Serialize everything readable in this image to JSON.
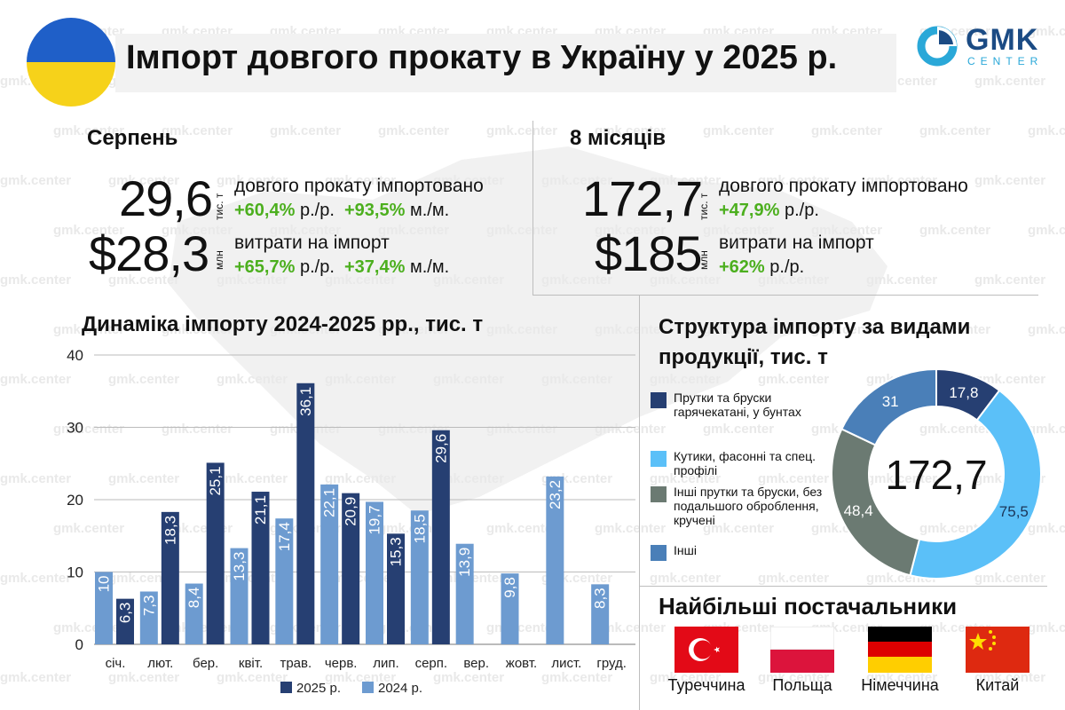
{
  "header": {
    "title": "Імпорт довгого прокату в Україну у 2025 р.",
    "logo_name": "GMK",
    "logo_sub": "CENTER",
    "watermark": "gmk.center"
  },
  "colors": {
    "dark_blue": "#263f72",
    "light_blue": "#6d9bd0",
    "sky_blue": "#5bc0f8",
    "gray_green": "#6b7a72",
    "steel_blue": "#4a7fb8",
    "green": "#4caf1e",
    "flag_blue": "#1f5fc8",
    "flag_yellow": "#f6d21a"
  },
  "august": {
    "title": "Серпень",
    "volume": "29,6",
    "volume_unit": "тис. т",
    "volume_desc": "довгого прокату імпортовано",
    "volume_yoy": "+60,4%",
    "yoy_label": "р./р.",
    "volume_mom": "+93,5%",
    "mom_label": "м./м.",
    "cost": "$28,3",
    "cost_unit": "млн",
    "cost_desc": "витрати на імпорт",
    "cost_yoy": "+65,7%",
    "cost_mom": "+37,4%"
  },
  "eight_months": {
    "title": "8 місяців",
    "volume": "172,7",
    "volume_unit": "тис. т",
    "volume_desc": "довгого прокату імпортовано",
    "volume_yoy": "+47,9%",
    "yoy_label": "р./р.",
    "cost": "$185",
    "cost_unit": "млн",
    "cost_desc": "витрати на імпорт",
    "cost_yoy": "+62%"
  },
  "chart_data": [
    {
      "type": "bar",
      "title": "Динаміка імпорту 2024-2025 рр., тис. т",
      "categories": [
        "січ.",
        "лют.",
        "бер.",
        "квіт.",
        "трав.",
        "черв.",
        "лип.",
        "серп.",
        "вер.",
        "жовт.",
        "лист.",
        "груд."
      ],
      "series": [
        {
          "name": "2024 р.",
          "color": "#6d9bd0",
          "values": [
            10,
            7.3,
            8.4,
            13.3,
            17.4,
            22.1,
            19.7,
            18.5,
            13.9,
            9.8,
            23.2,
            8.3
          ],
          "labels": [
            "10",
            "7,3",
            "8,4",
            "13,3",
            "17,4",
            "22,1",
            "19,7",
            "18,5",
            "13,9",
            "9,8",
            "23,2",
            "8,3"
          ]
        },
        {
          "name": "2025 р.",
          "color": "#263f72",
          "values": [
            6.3,
            18.3,
            25.1,
            21.1,
            36.1,
            20.9,
            15.3,
            29.6,
            null,
            null,
            null,
            null
          ],
          "labels": [
            "6,3",
            "18,3",
            "25,1",
            "21,1",
            "36,1",
            "20,9",
            "15,3",
            "29,6",
            "",
            "",
            "",
            ""
          ]
        }
      ],
      "ylim": [
        0,
        40
      ],
      "yticks": [
        0,
        10,
        20,
        30,
        40
      ],
      "grid": true,
      "legend": "bottom"
    },
    {
      "type": "pie",
      "title": "Структура імпорту за видами продукції, тис. т",
      "total": "172,7",
      "slices": [
        {
          "label": "Прутки та бруски гарячекатані, у бунтах",
          "value": 17.8,
          "value_label": "17,8",
          "color": "#263f72"
        },
        {
          "label": "Кутики, фасонні та спец. профілі",
          "value": 75.5,
          "value_label": "75,5",
          "color": "#5bc0f8"
        },
        {
          "label": "Інші прутки та бруски, без подальшого оброблення, кручені",
          "value": 48.4,
          "value_label": "48,4",
          "color": "#6b7a72"
        },
        {
          "label": "Інші",
          "value": 31,
          "value_label": "31",
          "color": "#4a7fb8"
        }
      ]
    }
  ],
  "suppliers": {
    "title": "Найбільші постачальники",
    "items": [
      {
        "name": "Туреччина",
        "flag": "turkey-flag"
      },
      {
        "name": "Польща",
        "flag": "poland-flag"
      },
      {
        "name": "Німеччина",
        "flag": "germany-flag"
      },
      {
        "name": "Китай",
        "flag": "china-flag"
      }
    ]
  }
}
